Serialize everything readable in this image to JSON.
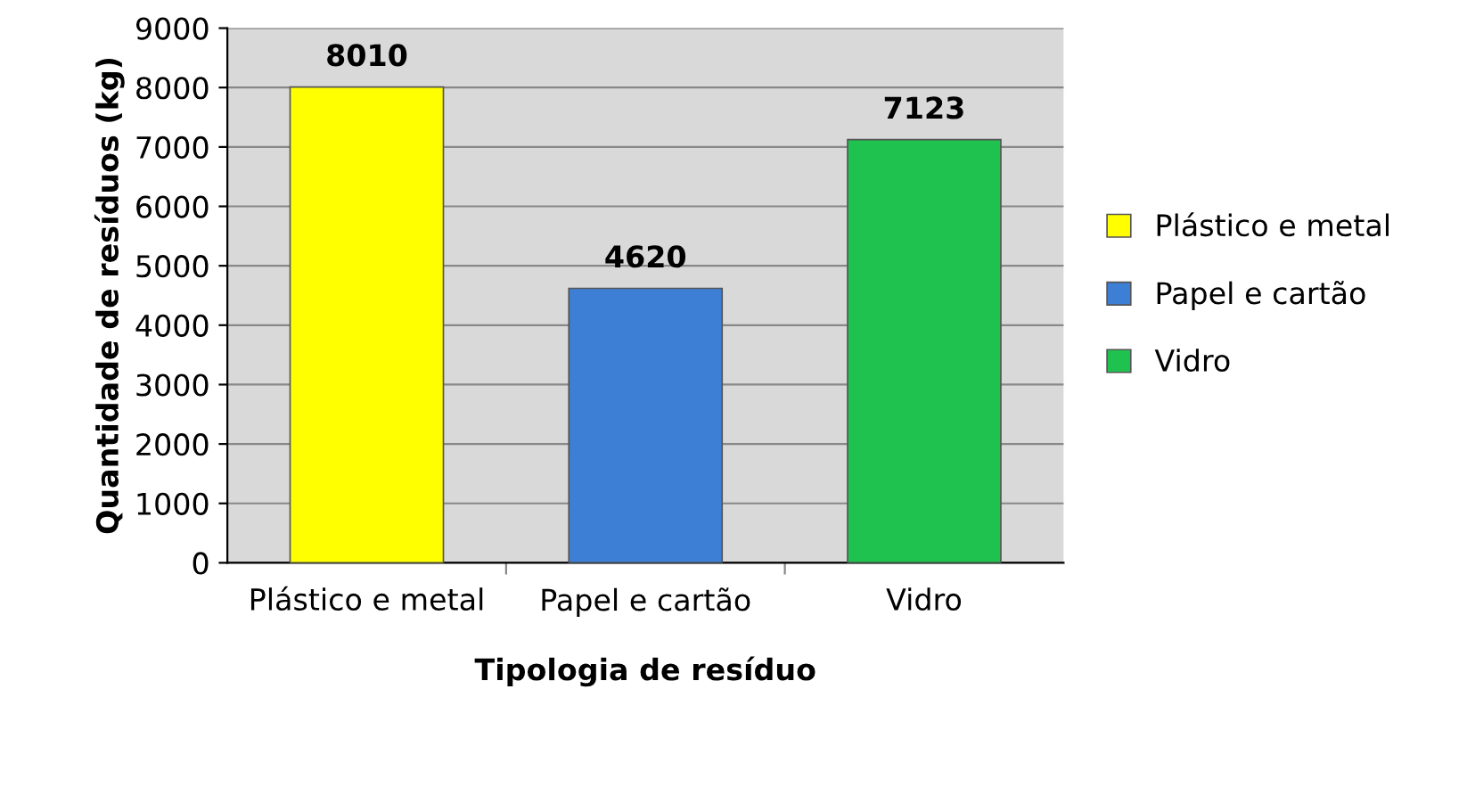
{
  "chart_data": {
    "type": "bar",
    "xlabel": "Tipologia de resíduo",
    "ylabel": "Quantidade de resíduos (kg)",
    "categories": [
      "Plástico e metal",
      "Papel e cartão",
      "Vidro"
    ],
    "series": [
      {
        "name": "Plástico e metal",
        "color": "#ffff00",
        "values": [
          8010,
          null,
          null
        ]
      },
      {
        "name": "Papel e cartão",
        "color": "#3c7fd4",
        "values": [
          null,
          4620,
          null
        ]
      },
      {
        "name": "Vidro",
        "color": "#1fc24e",
        "values": [
          null,
          null,
          7123
        ]
      }
    ],
    "ylim": [
      0,
      9000
    ],
    "yticks": [
      0,
      1000,
      2000,
      3000,
      4000,
      5000,
      6000,
      7000,
      8000,
      9000
    ],
    "grid": "y",
    "legend": "right",
    "data_labels": true
  }
}
